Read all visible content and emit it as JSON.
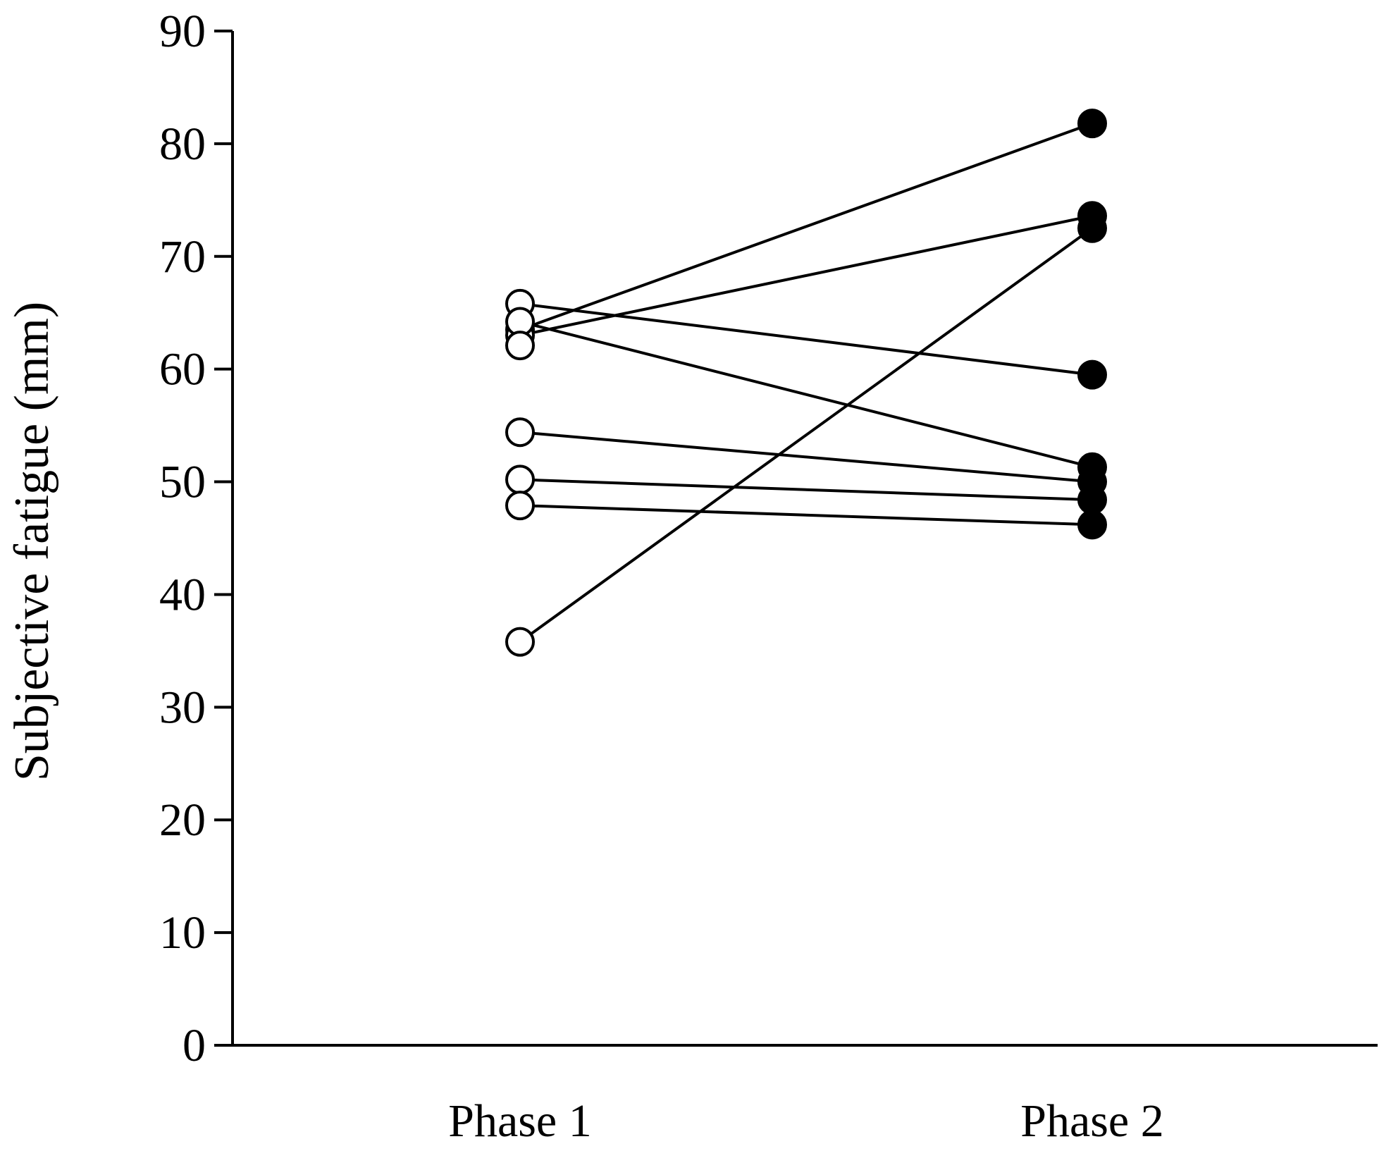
{
  "chart_data": {
    "type": "line",
    "categories": [
      "Phase 1",
      "Phase 2"
    ],
    "xlabel": "",
    "ylabel": "Subjective fatigue (mm)",
    "ylim": [
      0,
      90
    ],
    "yticks": [
      0,
      10,
      20,
      30,
      40,
      50,
      60,
      70,
      80,
      90
    ],
    "grid": false,
    "legend": "none",
    "marker_styles": {
      "Phase 1": "open-circle",
      "Phase 2": "filled-circle"
    },
    "line_color": "#000000",
    "series": [
      {
        "values": [
          63.5,
          81.8
        ]
      },
      {
        "values": [
          63.0,
          73.6
        ]
      },
      {
        "values": [
          65.8,
          59.5
        ]
      },
      {
        "values": [
          64.2,
          51.3
        ]
      },
      {
        "values": [
          54.4,
          50.0
        ]
      },
      {
        "values": [
          50.2,
          48.4
        ]
      },
      {
        "values": [
          47.9,
          46.2
        ]
      },
      {
        "values": [
          35.8,
          72.5
        ]
      },
      {
        "values": [
          62.1,
          null
        ]
      }
    ]
  }
}
